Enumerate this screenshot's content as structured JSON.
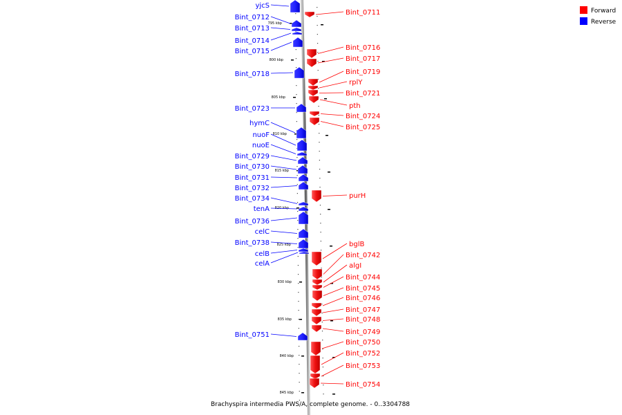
{
  "caption": "Brachyspira intermedia PWS/A, complete genome. - 0..3304788",
  "legend": [
    {
      "label": "Forward",
      "color": "#ff0000"
    },
    {
      "label": "Reverse",
      "color": "#0000ff"
    }
  ],
  "colors": {
    "forward": "#ff0000",
    "reverse": "#0000ff",
    "axis": "#888888"
  },
  "ticks": [
    "795 kbp",
    "800 kbp",
    "805 kbp",
    "810 kbp",
    "815 kbp",
    "820 kbp",
    "825 kbp",
    "830 kbp",
    "835 kbp",
    "840 kbp",
    "845 kbp"
  ],
  "reverse_genes": [
    "yjcS",
    "Bint_0712",
    "Bint_0713",
    "Bint_0714",
    "Bint_0715",
    "Bint_0718",
    "Bint_0723",
    "hymC",
    "nuoF",
    "nuoE",
    "Bint_0729",
    "Bint_0730",
    "Bint_0731",
    "Bint_0732",
    "Bint_0734",
    "tenA",
    "Bint_0736",
    "celC",
    "Bint_0738",
    "celB",
    "celA",
    "Bint_0751"
  ],
  "forward_genes": [
    "Bint_0711",
    "Bint_0716",
    "Bint_0717",
    "Bint_0719",
    "rplY",
    "Bint_0721",
    "pth",
    "Bint_0724",
    "Bint_0725",
    "purH",
    "bglB",
    "Bint_0742",
    "algI",
    "Bint_0744",
    "Bint_0745",
    "Bint_0746",
    "Bint_0747",
    "Bint_0748",
    "Bint_0749",
    "Bint_0750",
    "Bint_0752",
    "Bint_0753",
    "Bint_0754"
  ]
}
